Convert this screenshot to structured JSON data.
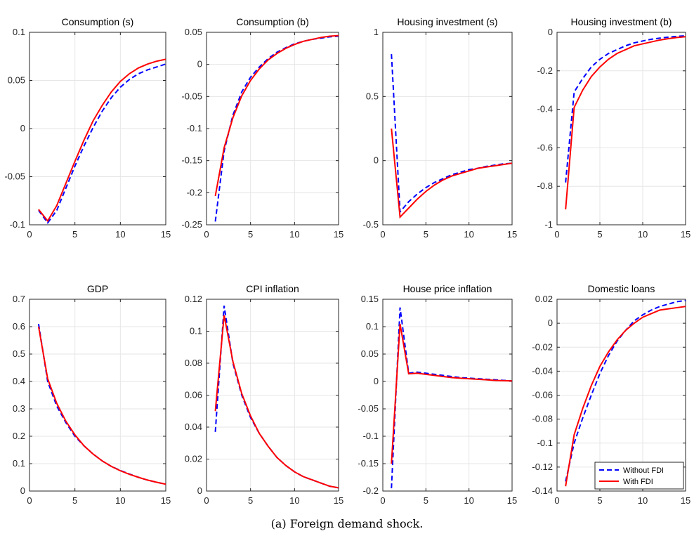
{
  "caption": "(a) Foreign demand shock.",
  "colors": {
    "without_fdi": "#0000ff",
    "with_fdi": "#ff0000",
    "grid": "#e6e6e6",
    "axis": "#262626"
  },
  "legend": {
    "placement": "bottom-right",
    "panel": 7,
    "entries": [
      "Without FDI",
      "With FDI"
    ]
  },
  "chart_data": [
    {
      "type": "line",
      "title": "Consumption (s)",
      "x": [
        1,
        2,
        3,
        4,
        5,
        6,
        7,
        8,
        9,
        10,
        11,
        12,
        13,
        14,
        15
      ],
      "xlim": [
        0,
        15
      ],
      "xticks": [
        0,
        5,
        10,
        15
      ],
      "ylim": [
        -0.1,
        0.1
      ],
      "yticks": [
        -0.1,
        -0.05,
        0,
        0.05,
        0.1
      ],
      "ytick_labels": [
        "-0.1",
        "-0.05",
        "0",
        "0.05",
        "0.1"
      ],
      "grid": true,
      "series": [
        {
          "name": "Without FDI",
          "style": "dashed",
          "values": [
            -0.085,
            -0.098,
            -0.085,
            -0.062,
            -0.039,
            -0.018,
            0.001,
            0.018,
            0.032,
            0.043,
            0.051,
            0.057,
            0.061,
            0.064,
            0.067
          ]
        },
        {
          "name": "With FDI",
          "style": "solid",
          "values": [
            -0.084,
            -0.096,
            -0.08,
            -0.057,
            -0.034,
            -0.012,
            0.008,
            0.024,
            0.038,
            0.049,
            0.057,
            0.063,
            0.067,
            0.07,
            0.072
          ]
        }
      ]
    },
    {
      "type": "line",
      "title": "Consumption (b)",
      "x": [
        1,
        2,
        3,
        4,
        5,
        6,
        7,
        8,
        9,
        10,
        11,
        12,
        13,
        14,
        15
      ],
      "xlim": [
        0,
        15
      ],
      "xticks": [
        0,
        5,
        10,
        15
      ],
      "ylim": [
        -0.25,
        0.05
      ],
      "yticks": [
        -0.25,
        -0.2,
        -0.15,
        -0.1,
        -0.05,
        0,
        0.05
      ],
      "ytick_labels": [
        "-0.25",
        "-0.2",
        "-0.15",
        "-0.1",
        "-0.05",
        "0",
        "0.05"
      ],
      "grid": true,
      "series": [
        {
          "name": "Without FDI",
          "style": "dashed",
          "values": [
            -0.245,
            -0.135,
            -0.079,
            -0.043,
            -0.02,
            -0.004,
            0.009,
            0.019,
            0.026,
            0.032,
            0.036,
            0.039,
            0.041,
            0.043,
            0.044
          ]
        },
        {
          "name": "With FDI",
          "style": "solid",
          "values": [
            -0.205,
            -0.13,
            -0.083,
            -0.049,
            -0.025,
            -0.007,
            0.007,
            0.017,
            0.025,
            0.031,
            0.036,
            0.039,
            0.042,
            0.044,
            0.045
          ]
        }
      ]
    },
    {
      "type": "line",
      "title": "Housing investment (s)",
      "x": [
        1,
        2,
        3,
        4,
        5,
        6,
        7,
        8,
        9,
        10,
        11,
        12,
        13,
        14,
        15
      ],
      "xlim": [
        0,
        15
      ],
      "xticks": [
        0,
        5,
        10,
        15
      ],
      "ylim": [
        -0.5,
        1
      ],
      "yticks": [
        -0.5,
        0,
        0.5,
        1
      ],
      "ytick_labels": [
        "-0.5",
        "0",
        "0.5",
        "1"
      ],
      "grid": true,
      "series": [
        {
          "name": "Without FDI",
          "style": "dashed",
          "values": [
            0.83,
            -0.4,
            -0.32,
            -0.26,
            -0.21,
            -0.17,
            -0.14,
            -0.11,
            -0.09,
            -0.07,
            -0.06,
            -0.045,
            -0.035,
            -0.025,
            -0.02
          ]
        },
        {
          "name": "With FDI",
          "style": "solid",
          "values": [
            0.25,
            -0.44,
            -0.37,
            -0.3,
            -0.24,
            -0.19,
            -0.15,
            -0.12,
            -0.1,
            -0.08,
            -0.06,
            -0.05,
            -0.04,
            -0.03,
            -0.02
          ]
        }
      ]
    },
    {
      "type": "line",
      "title": "Housing investment (b)",
      "x": [
        1,
        2,
        3,
        4,
        5,
        6,
        7,
        8,
        9,
        10,
        11,
        12,
        13,
        14,
        15
      ],
      "xlim": [
        0,
        15
      ],
      "xticks": [
        0,
        5,
        10,
        15
      ],
      "ylim": [
        -1,
        0
      ],
      "yticks": [
        -1,
        -0.8,
        -0.6,
        -0.4,
        -0.2,
        0
      ],
      "ytick_labels": [
        "-1",
        "-0.8",
        "-0.6",
        "-0.4",
        "-0.2",
        "0"
      ],
      "grid": true,
      "series": [
        {
          "name": "Without FDI",
          "style": "dashed",
          "values": [
            -0.78,
            -0.31,
            -0.24,
            -0.18,
            -0.14,
            -0.11,
            -0.09,
            -0.07,
            -0.055,
            -0.045,
            -0.036,
            -0.03,
            -0.025,
            -0.021,
            -0.018
          ]
        },
        {
          "name": "With FDI",
          "style": "solid",
          "values": [
            -0.92,
            -0.39,
            -0.3,
            -0.23,
            -0.18,
            -0.14,
            -0.11,
            -0.09,
            -0.07,
            -0.06,
            -0.05,
            -0.04,
            -0.033,
            -0.027,
            -0.023
          ]
        }
      ]
    },
    {
      "type": "line",
      "title": "GDP",
      "x": [
        1,
        2,
        3,
        4,
        5,
        6,
        7,
        8,
        9,
        10,
        11,
        12,
        13,
        14,
        15
      ],
      "xlim": [
        0,
        15
      ],
      "xticks": [
        0,
        5,
        10,
        15
      ],
      "ylim": [
        0,
        0.7
      ],
      "yticks": [
        0,
        0.1,
        0.2,
        0.3,
        0.4,
        0.5,
        0.6,
        0.7
      ],
      "ytick_labels": [
        "0",
        "0.1",
        "0.2",
        "0.3",
        "0.4",
        "0.5",
        "0.6",
        "0.7"
      ],
      "grid": true,
      "series": [
        {
          "name": "Without FDI",
          "style": "dashed",
          "values": [
            0.61,
            0.4,
            0.31,
            0.25,
            0.2,
            0.165,
            0.135,
            0.11,
            0.09,
            0.075,
            0.062,
            0.05,
            0.04,
            0.032,
            0.025
          ]
        },
        {
          "name": "With FDI",
          "style": "solid",
          "values": [
            0.6,
            0.41,
            0.32,
            0.255,
            0.205,
            0.165,
            0.135,
            0.11,
            0.09,
            0.074,
            0.061,
            0.05,
            0.04,
            0.032,
            0.025
          ]
        }
      ]
    },
    {
      "type": "line",
      "title": "CPI inflation",
      "x": [
        1,
        2,
        3,
        4,
        5,
        6,
        7,
        8,
        9,
        10,
        11,
        12,
        13,
        14,
        15
      ],
      "xlim": [
        0,
        15
      ],
      "xticks": [
        0,
        5,
        10,
        15
      ],
      "ylim": [
        0,
        0.12
      ],
      "yticks": [
        0,
        0.02,
        0.04,
        0.06,
        0.08,
        0.1,
        0.12
      ],
      "ytick_labels": [
        "0",
        "0.02",
        "0.04",
        "0.06",
        "0.08",
        "0.1",
        "0.12"
      ],
      "grid": true,
      "series": [
        {
          "name": "Without FDI",
          "style": "dashed",
          "values": [
            0.037,
            0.116,
            0.08,
            0.06,
            0.046,
            0.036,
            0.028,
            0.021,
            0.016,
            0.012,
            0.009,
            0.007,
            0.005,
            0.003,
            0.002
          ]
        },
        {
          "name": "With FDI",
          "style": "solid",
          "values": [
            0.05,
            0.11,
            0.081,
            0.061,
            0.047,
            0.036,
            0.028,
            0.021,
            0.016,
            0.012,
            0.009,
            0.007,
            0.005,
            0.003,
            0.002
          ]
        }
      ]
    },
    {
      "type": "line",
      "title": "House price inflation",
      "x": [
        1,
        2,
        3,
        4,
        5,
        6,
        7,
        8,
        9,
        10,
        11,
        12,
        13,
        14,
        15
      ],
      "xlim": [
        0,
        15
      ],
      "xticks": [
        0,
        5,
        10,
        15
      ],
      "ylim": [
        -0.2,
        0.15
      ],
      "yticks": [
        -0.2,
        -0.15,
        -0.1,
        -0.05,
        0,
        0.05,
        0.1,
        0.15
      ],
      "ytick_labels": [
        "-0.2",
        "-0.15",
        "-0.1",
        "-0.05",
        "0",
        "0.05",
        "0.1",
        "0.15"
      ],
      "grid": true,
      "series": [
        {
          "name": "Without FDI",
          "style": "dashed",
          "values": [
            -0.195,
            0.135,
            0.015,
            0.017,
            0.015,
            0.013,
            0.011,
            0.009,
            0.007,
            0.006,
            0.005,
            0.004,
            0.003,
            0.002,
            0.001
          ]
        },
        {
          "name": "With FDI",
          "style": "solid",
          "values": [
            -0.15,
            0.105,
            0.014,
            0.015,
            0.013,
            0.011,
            0.009,
            0.007,
            0.006,
            0.005,
            0.004,
            0.003,
            0.002,
            0.0015,
            0.001
          ]
        }
      ]
    },
    {
      "type": "line",
      "title": "Domestic loans",
      "x": [
        1,
        2,
        3,
        4,
        5,
        6,
        7,
        8,
        9,
        10,
        11,
        12,
        13,
        14,
        15
      ],
      "xlim": [
        0,
        15
      ],
      "xticks": [
        0,
        5,
        10,
        15
      ],
      "ylim": [
        -0.14,
        0.02
      ],
      "yticks": [
        -0.14,
        -0.12,
        -0.1,
        -0.08,
        -0.06,
        -0.04,
        -0.02,
        0,
        0.02
      ],
      "ytick_labels": [
        "-0.14",
        "-0.12",
        "-0.1",
        "-0.08",
        "-0.06",
        "-0.04",
        "-0.02",
        "0",
        "0.02"
      ],
      "grid": true,
      "series": [
        {
          "name": "Without FDI",
          "style": "dashed",
          "values": [
            -0.132,
            -0.1,
            -0.079,
            -0.06,
            -0.042,
            -0.027,
            -0.015,
            -0.006,
            0.002,
            0.007,
            0.011,
            0.014,
            0.016,
            0.018,
            0.019
          ]
        },
        {
          "name": "With FDI",
          "style": "solid",
          "values": [
            -0.136,
            -0.093,
            -0.071,
            -0.052,
            -0.036,
            -0.024,
            -0.014,
            -0.006,
            0.0,
            0.005,
            0.008,
            0.011,
            0.012,
            0.013,
            0.014
          ]
        }
      ]
    }
  ]
}
